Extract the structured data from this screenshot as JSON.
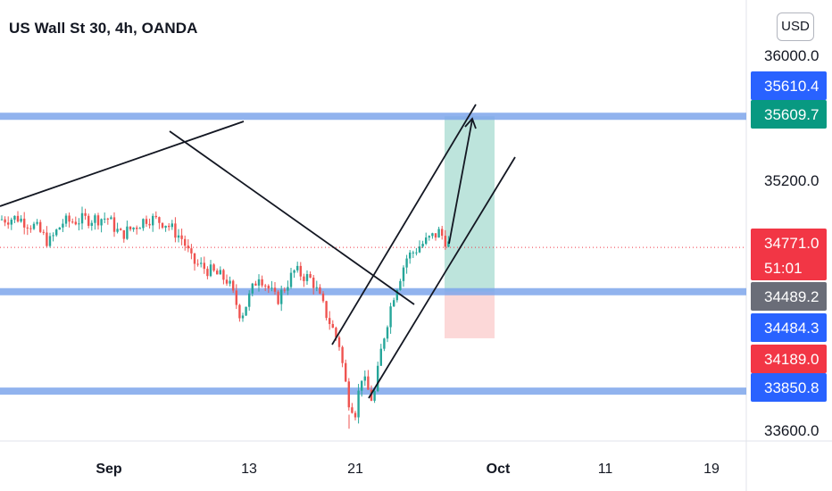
{
  "header": {
    "title": "US Wall St 30, 4h, OANDA",
    "currency_button": "USD"
  },
  "colors": {
    "up": "#26a69a",
    "down": "#ef5350",
    "level_line": "#7ea6ec",
    "tag_blue": "#2962ff",
    "tag_green": "#089981",
    "tag_red": "#f23645",
    "tag_gray": "#6a6d78",
    "tp_zone": "#b2dfd6",
    "sl_zone": "#fbd1d1"
  },
  "chart_data": {
    "type": "candlestick",
    "instrument": "US Wall St 30",
    "timeframe": "4h",
    "source": "OANDA",
    "currency": "USD",
    "y_ticks": [
      "36000.0",
      "35200.0",
      "33600.0"
    ],
    "x_ticks": [
      {
        "label": "Sep",
        "bold": true
      },
      {
        "label": "13",
        "bold": false
      },
      {
        "label": "21",
        "bold": false
      },
      {
        "label": "Oct",
        "bold": true
      },
      {
        "label": "11",
        "bold": false
      },
      {
        "label": "19",
        "bold": false
      }
    ],
    "price_tags": [
      {
        "label": "35610.4",
        "price": 35610.4,
        "color": "#2962ff"
      },
      {
        "label": "35609.7",
        "price": 35609.7,
        "color": "#089981"
      },
      {
        "label": "34771.0",
        "price": 34771.0,
        "color": "#f23645",
        "countdown": "51:01"
      },
      {
        "label": "34489.2",
        "price": 34489.2,
        "color": "#6a6d78"
      },
      {
        "label": "34484.3",
        "price": 34484.3,
        "color": "#2962ff"
      },
      {
        "label": "34189.0",
        "price": 34189.0,
        "color": "#f23645"
      },
      {
        "label": "33850.8",
        "price": 33850.8,
        "color": "#2962ff"
      }
    ],
    "horizontal_levels": [
      35610.0,
      34487.0,
      33851.0
    ],
    "current_price": 34771.0,
    "position": {
      "entry": 34487.0,
      "target": 35610.0,
      "stop": 34189.0
    },
    "candles_ohlc_approx": "Sep 1 to Sep 27 2021, range roughly 33620 to 35570"
  }
}
